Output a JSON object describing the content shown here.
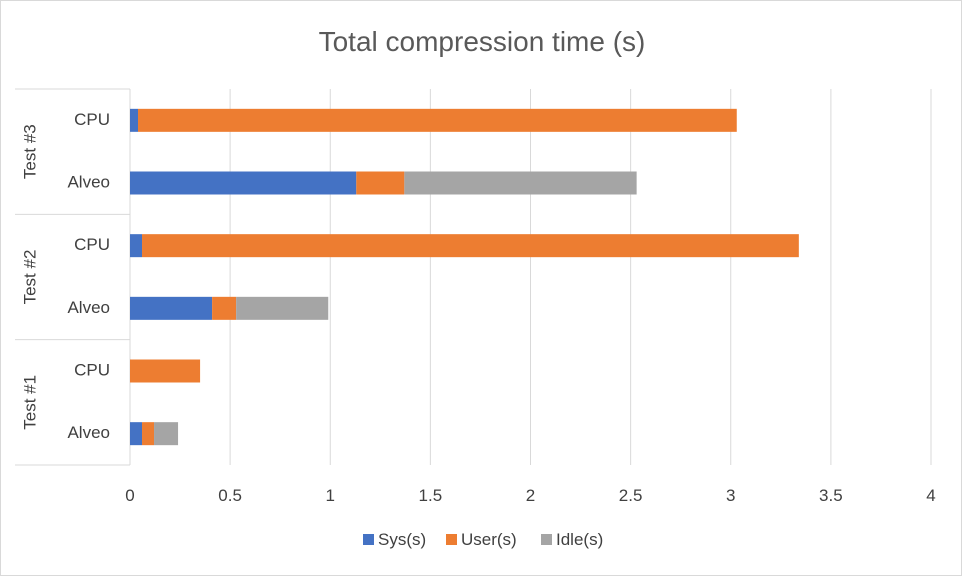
{
  "chart_data": {
    "type": "bar",
    "orientation": "horizontal",
    "stacked": true,
    "title": "Total compression time (s)",
    "xlabel": "",
    "ylabel": "",
    "xlim": [
      0,
      4
    ],
    "xticks": [
      "0",
      "0.5",
      "1",
      "1.5",
      "2",
      "2.5",
      "3",
      "3.5",
      "4"
    ],
    "grid": true,
    "legend_position": "bottom",
    "groups": [
      {
        "label": "Test #3",
        "categories": [
          "CPU",
          "Alveo"
        ]
      },
      {
        "label": "Test #2",
        "categories": [
          "CPU",
          "Alveo"
        ]
      },
      {
        "label": "Test #1",
        "categories": [
          "CPU",
          "Alveo"
        ]
      }
    ],
    "series": [
      {
        "name": "Sys(s)",
        "color": "#4472C4",
        "values": [
          0.04,
          1.13,
          0.06,
          0.41,
          0.0,
          0.06
        ]
      },
      {
        "name": "User(s)",
        "color": "#ED7D31",
        "values": [
          2.99,
          0.24,
          3.28,
          0.12,
          0.35,
          0.06
        ]
      },
      {
        "name": "Idle(s)",
        "color": "#A5A5A5",
        "values": [
          0.0,
          1.16,
          0.0,
          0.46,
          0.0,
          0.12
        ]
      }
    ]
  }
}
